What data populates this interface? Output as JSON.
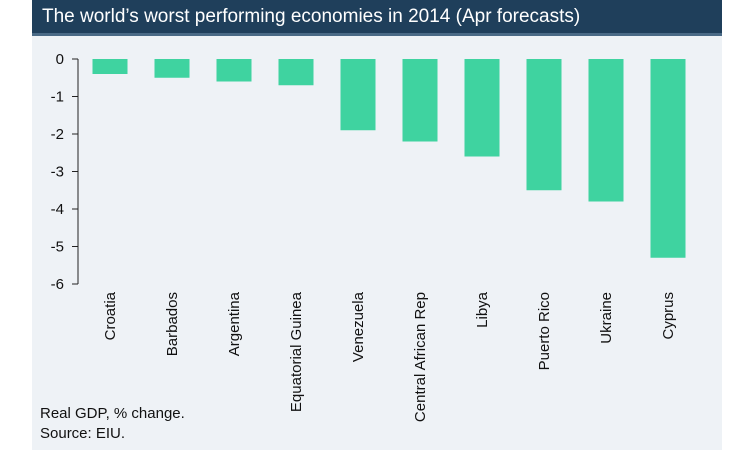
{
  "chart_data": {
    "type": "bar",
    "title": "The world’s worst performing economies in 2014 (Apr forecasts)",
    "categories": [
      "Croatia",
      "Barbados",
      "Argentina",
      "Equatorial Guinea",
      "Venezuela",
      "Central African Rep",
      "Libya",
      "Puerto Rico",
      "Ukraine",
      "Cyprus"
    ],
    "values": [
      -0.4,
      -0.5,
      -0.6,
      -0.7,
      -1.9,
      -2.2,
      -2.6,
      -3.5,
      -3.8,
      -5.3
    ],
    "ylim": [
      -6,
      0
    ],
    "yticks": [
      "0",
      "-1",
      "-2",
      "-3",
      "-4",
      "-5",
      "-6"
    ],
    "xlabel": "",
    "ylabel": "",
    "bar_color": "#3fd3a0",
    "grid": false,
    "legend": "none",
    "notes": [
      "Real GDP, % change.",
      "Source: EIU."
    ]
  },
  "colors": {
    "title_bar": "#1f3f5b",
    "panel_background": "#eef2f6",
    "bar": "#3fd3a0"
  }
}
